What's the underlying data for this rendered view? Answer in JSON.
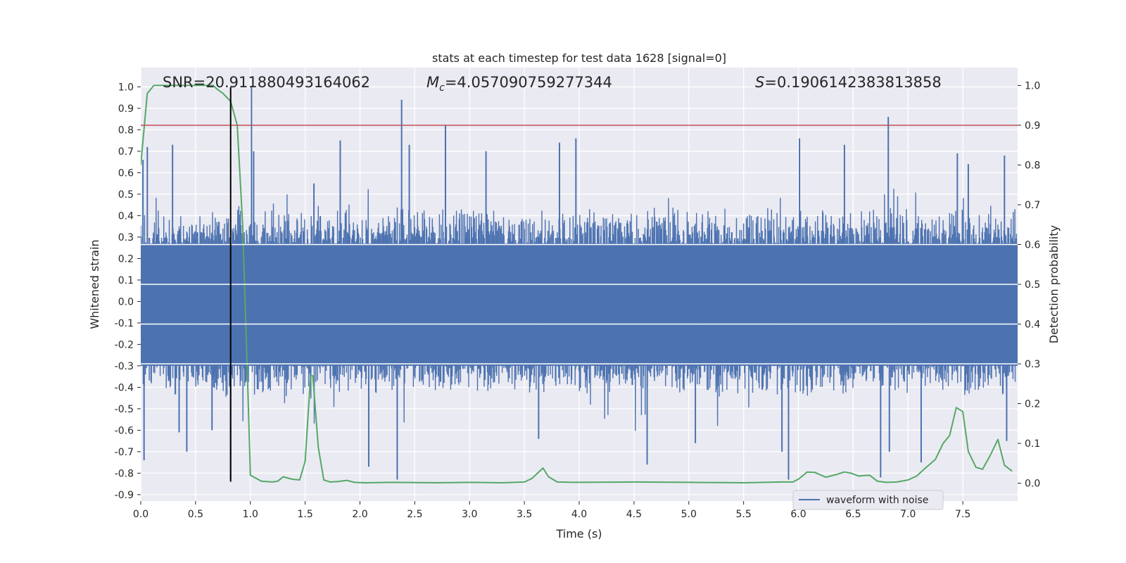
{
  "chart_data": {
    "type": "line",
    "title": "stats at each timestep for test data 1628 [signal=0]",
    "xlabel": "Time (s)",
    "ylabel_left": "Whitened strain",
    "ylabel_right": "Detection probability",
    "xlim": [
      0.0,
      8.0
    ],
    "ylim_left": [
      -0.93,
      1.09
    ],
    "ylim_right": [
      -0.045,
      1.045
    ],
    "x_ticks": [
      "0.0",
      "0.5",
      "1.0",
      "1.5",
      "2.0",
      "2.5",
      "3.0",
      "3.5",
      "4.0",
      "4.5",
      "5.0",
      "5.5",
      "6.0",
      "6.5",
      "7.0",
      "7.5"
    ],
    "y_left_ticks": [
      "1.0",
      "0.9",
      "0.8",
      "0.7",
      "0.6",
      "0.5",
      "0.4",
      "0.3",
      "0.2",
      "0.1",
      "0.0",
      "-0.1",
      "-0.2",
      "-0.3",
      "-0.4",
      "-0.5",
      "-0.6",
      "-0.7",
      "-0.8",
      "-0.9"
    ],
    "y_right_ticks": [
      "1.0",
      "0.9",
      "0.8",
      "0.7",
      "0.6",
      "0.5",
      "0.4",
      "0.3",
      "0.2",
      "0.1",
      "0.0"
    ],
    "grid": true,
    "legend_position": "lower-right",
    "annotations": {
      "snr": "SNR=20.911880493164062",
      "mc_symbol": "M",
      "mc_sub": "c",
      "mc_value": "=4.057090759277344",
      "s_symbol": "S",
      "s_value": "=0.1906142383813858"
    },
    "threshold_right": 0.9,
    "marker_time": 0.82,
    "marker_left_range": [
      -0.84,
      1.0
    ],
    "series": [
      {
        "name": "waveform with noise",
        "color": "#4c72b0",
        "noise_envelope": 0.45,
        "spikes": [
          [
            0.02,
            0.66
          ],
          [
            0.03,
            -0.74
          ],
          [
            0.06,
            0.72
          ],
          [
            0.29,
            0.73
          ],
          [
            0.42,
            -0.7
          ],
          [
            0.35,
            -0.61
          ],
          [
            0.65,
            -0.6
          ],
          [
            0.82,
            -0.83
          ],
          [
            1.01,
            1.0
          ],
          [
            1.03,
            0.7
          ],
          [
            1.58,
            0.55
          ],
          [
            1.82,
            0.75
          ],
          [
            2.08,
            -0.77
          ],
          [
            2.34,
            -0.83
          ],
          [
            2.38,
            0.94
          ],
          [
            2.45,
            0.73
          ],
          [
            2.78,
            0.82
          ],
          [
            3.15,
            0.7
          ],
          [
            3.63,
            -0.64
          ],
          [
            3.82,
            0.74
          ],
          [
            3.97,
            0.76
          ],
          [
            4.62,
            -0.76
          ],
          [
            5.06,
            -0.66
          ],
          [
            5.85,
            -0.7
          ],
          [
            5.91,
            -0.83
          ],
          [
            6.01,
            0.76
          ],
          [
            6.42,
            0.73
          ],
          [
            6.82,
            0.86
          ],
          [
            6.75,
            -0.82
          ],
          [
            6.83,
            -0.7
          ],
          [
            7.12,
            -0.75
          ],
          [
            7.45,
            0.69
          ],
          [
            7.55,
            0.64
          ],
          [
            7.88,
            0.68
          ],
          [
            7.9,
            -0.65
          ]
        ]
      },
      {
        "name": "detection probability",
        "color": "#55a868",
        "x": [
          0.0,
          0.06,
          0.12,
          0.2,
          0.3,
          0.4,
          0.5,
          0.6,
          0.66,
          0.7,
          0.75,
          0.82,
          0.88,
          0.93,
          0.97,
          1.0,
          1.1,
          1.2,
          1.25,
          1.3,
          1.38,
          1.45,
          1.5,
          1.55,
          1.57,
          1.62,
          1.67,
          1.73,
          1.8,
          1.88,
          1.95,
          2.05,
          2.3,
          2.7,
          3.0,
          3.3,
          3.5,
          3.57,
          3.62,
          3.67,
          3.72,
          3.8,
          3.95,
          4.5,
          5.0,
          5.5,
          5.85,
          5.95,
          6.0,
          6.08,
          6.15,
          6.25,
          6.35,
          6.42,
          6.48,
          6.55,
          6.65,
          6.72,
          6.8,
          6.9,
          7.0,
          7.08,
          7.15,
          7.25,
          7.32,
          7.38,
          7.44,
          7.5,
          7.55,
          7.62,
          7.68,
          7.75,
          7.82,
          7.88,
          7.95
        ],
        "values": [
          0.8,
          0.98,
          1.0,
          1.0,
          1.0,
          1.0,
          1.0,
          1.0,
          1.0,
          0.99,
          0.98,
          0.96,
          0.9,
          0.65,
          0.3,
          0.02,
          0.005,
          0.003,
          0.005,
          0.016,
          0.01,
          0.008,
          0.055,
          0.27,
          0.27,
          0.09,
          0.008,
          0.003,
          0.004,
          0.007,
          0.002,
          0.001,
          0.002,
          0.001,
          0.002,
          0.001,
          0.003,
          0.012,
          0.025,
          0.038,
          0.016,
          0.003,
          0.002,
          0.003,
          0.002,
          0.001,
          0.003,
          0.003,
          0.01,
          0.028,
          0.027,
          0.015,
          0.022,
          0.028,
          0.025,
          0.018,
          0.02,
          0.005,
          0.002,
          0.003,
          0.008,
          0.018,
          0.036,
          0.06,
          0.1,
          0.12,
          0.19,
          0.18,
          0.08,
          0.04,
          0.035,
          0.07,
          0.11,
          0.045,
          0.03
        ]
      },
      {
        "name": "threshold",
        "color": "#c44e52"
      },
      {
        "name": "current time marker",
        "color": "#000000"
      }
    ]
  }
}
